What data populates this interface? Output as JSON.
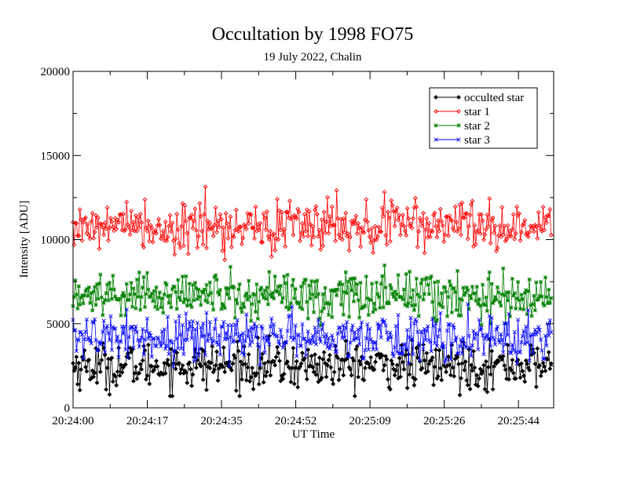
{
  "chart_data": {
    "type": "line",
    "title": "Occultation by 1998 FO75",
    "subtitle": "19 July 2022, Chalin",
    "xlabel": "UT Time",
    "ylabel": "Intensity [ADU]",
    "x_start": "20:24:00",
    "x_end": "20:25:52",
    "xlim_seconds": [
      0,
      112
    ],
    "ylim": [
      0,
      20000
    ],
    "x_tick_labels": [
      "20:24:00",
      "20:24:17",
      "20:24:35",
      "20:24:52",
      "20:25:09",
      "20:25:26",
      "20:25:44"
    ],
    "y_tick_labels": [
      "0",
      "5000",
      "10000",
      "15000",
      "20000"
    ],
    "legend_position": "top-right",
    "grid": false,
    "series": [
      {
        "name": "occulted star",
        "color": "#000000",
        "marker": "diamond-filled",
        "mean": 2500,
        "spread": 800,
        "min": 700,
        "max": 4700
      },
      {
        "name": "star 1",
        "color": "#ff0000",
        "marker": "diamond-open",
        "mean": 10800,
        "spread": 900,
        "min": 8100,
        "max": 13600
      },
      {
        "name": "star 2",
        "color": "#008000",
        "marker": "star",
        "mean": 6700,
        "spread": 800,
        "min": 4900,
        "max": 8700
      },
      {
        "name": "star 3",
        "color": "#0000ff",
        "marker": "x",
        "mean": 4200,
        "spread": 800,
        "min": 1300,
        "max": 6400
      }
    ],
    "samples_per_series": 420
  }
}
